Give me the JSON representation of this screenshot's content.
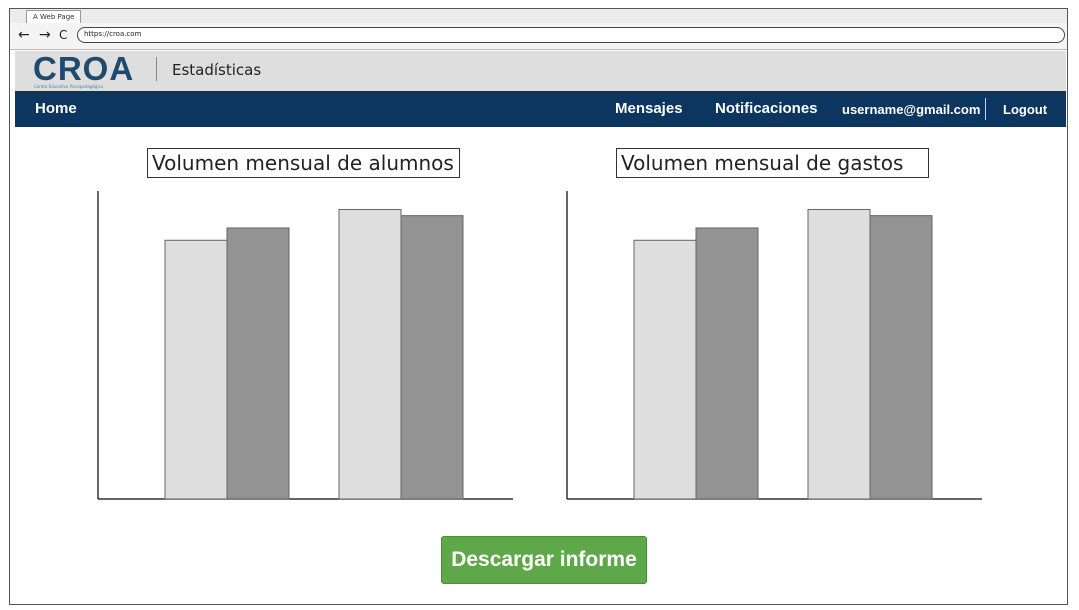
{
  "browser": {
    "tab_title": "A Web Page",
    "back_icon": "←",
    "forward_icon": "→",
    "reload_icon": "C",
    "url": "https://croa.com"
  },
  "brand": {
    "logo_text": "CROA",
    "logo_subtitle": "Centro Educativo Psicopedagógico",
    "section_title": "Estadísticas"
  },
  "nav": {
    "home": "Home",
    "messages": "Mensajes",
    "notifications": "Notificaciones",
    "user_email": "username@gmail.com",
    "logout": "Logout"
  },
  "chart_data": [
    {
      "type": "bar",
      "title": "Volumen mensual de alumnos",
      "categories": [
        "",
        ""
      ],
      "series": [
        {
          "values": [
            0.84,
            0.94
          ],
          "color": "#dedede"
        },
        {
          "values": [
            0.88,
            0.92
          ],
          "color": "#939393"
        }
      ],
      "ylim": [
        0,
        1
      ]
    },
    {
      "type": "bar",
      "title": "Volumen mensual de gastos",
      "categories": [
        "",
        ""
      ],
      "series": [
        {
          "values": [
            0.84,
            0.94
          ],
          "color": "#dedede"
        },
        {
          "values": [
            0.88,
            0.92
          ],
          "color": "#939393"
        }
      ],
      "ylim": [
        0,
        1
      ]
    }
  ],
  "actions": {
    "download_report": "Descargar informe"
  },
  "colors": {
    "navbar_bg": "#0c3560",
    "brand_bar_bg": "#dedede",
    "download_button": "#5fa84a"
  }
}
